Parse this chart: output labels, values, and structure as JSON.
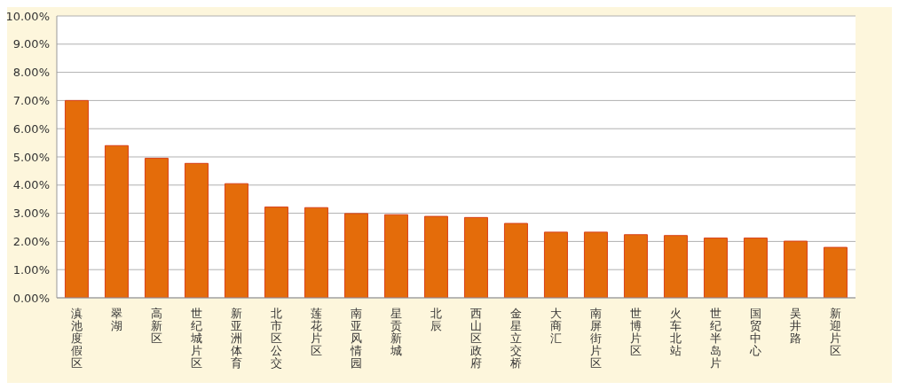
{
  "chart_data": {
    "type": "bar",
    "categories": [
      "滇池度假区",
      "翠湖",
      "高新区",
      "世纪城片区",
      "新亚洲体育",
      "北市区公交",
      "莲花片区",
      "南亚风情园",
      "星贡新城",
      "北辰",
      "西山区政府",
      "金星立交桥",
      "大商汇",
      "南屏街片区",
      "世博片区",
      "火车北站",
      "世纪半岛片",
      "国贸中心",
      "吴井路",
      "新迎片区"
    ],
    "values": [
      7.0,
      5.4,
      4.95,
      4.77,
      4.05,
      3.22,
      3.2,
      2.99,
      2.95,
      2.89,
      2.85,
      2.64,
      2.33,
      2.33,
      2.24,
      2.21,
      2.12,
      2.12,
      2.01,
      1.79
    ],
    "color": "#e46c0a",
    "ylim": [
      0,
      10
    ],
    "yticks": [
      {
        "value": 0,
        "label": "0.00%"
      },
      {
        "value": 1,
        "label": "1.00%"
      },
      {
        "value": 2,
        "label": "2.00%"
      },
      {
        "value": 3,
        "label": "3.00%"
      },
      {
        "value": 4,
        "label": "4.00%"
      },
      {
        "value": 5,
        "label": "5.00%"
      },
      {
        "value": 6,
        "label": "6.00%"
      },
      {
        "value": 7,
        "label": "7.00%"
      },
      {
        "value": 8,
        "label": "8.00%"
      },
      {
        "value": 9,
        "label": "9.00%"
      },
      {
        "value": 10,
        "label": "10.00%"
      }
    ],
    "grid": "y"
  }
}
